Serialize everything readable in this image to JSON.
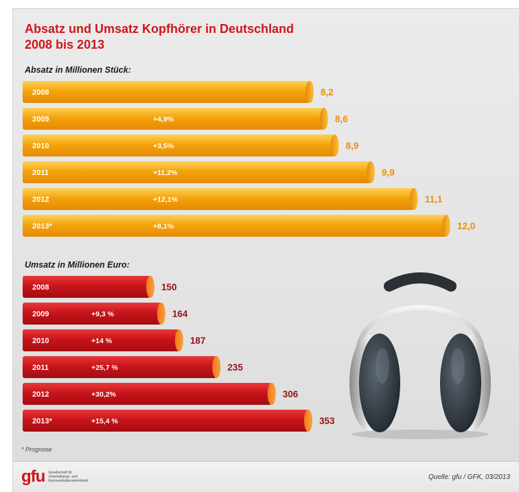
{
  "title_line1": "Absatz und Umsatz Kopfhörer in Deutschland",
  "title_line2": "2008 bis 2013",
  "footnote": "* Prognose",
  "source": "Quelle: gfu / GFK, 03/2013",
  "logo": {
    "wordmark": "gfu",
    "tagline": "Gesellschaft für Unterhaltungs- und Kommunikationselektronik"
  },
  "colors": {
    "orange": "#f5a20a",
    "orange_light": "#fcc23e",
    "orange_label": "#e8900c",
    "red": "#c9141a",
    "red_light": "#e22a2e",
    "red_label": "#9a1216",
    "title": "#d0151b"
  },
  "chart_data": [
    {
      "type": "bar",
      "orientation": "horizontal",
      "title": "Absatz in Millionen Stück:",
      "categories": [
        "2008",
        "2009",
        "2010",
        "2011",
        "2012",
        "2013*"
      ],
      "values": [
        8.2,
        8.6,
        8.9,
        9.9,
        11.1,
        12.0
      ],
      "value_labels": [
        "8,2",
        "8,6",
        "8,9",
        "9,9",
        "11,1",
        "12,0"
      ],
      "growth_labels": [
        "",
        "+4,9%",
        "+3,5%",
        "+11,2%",
        "+12,1%",
        "+8,1%"
      ],
      "color": "orange"
    },
    {
      "type": "bar",
      "orientation": "horizontal",
      "title": "Umsatz in Millionen Euro:",
      "categories": [
        "2008",
        "2009",
        "2010",
        "2011",
        "2012",
        "2013*"
      ],
      "values": [
        150,
        164,
        187,
        235,
        306,
        353
      ],
      "value_labels": [
        "150",
        "164",
        "187",
        "235",
        "306",
        "353"
      ],
      "growth_labels": [
        "",
        "+9,3 %",
        "+14 %",
        "+25,7 %",
        "+30,2%",
        "+15,4 %"
      ],
      "color": "red"
    }
  ]
}
